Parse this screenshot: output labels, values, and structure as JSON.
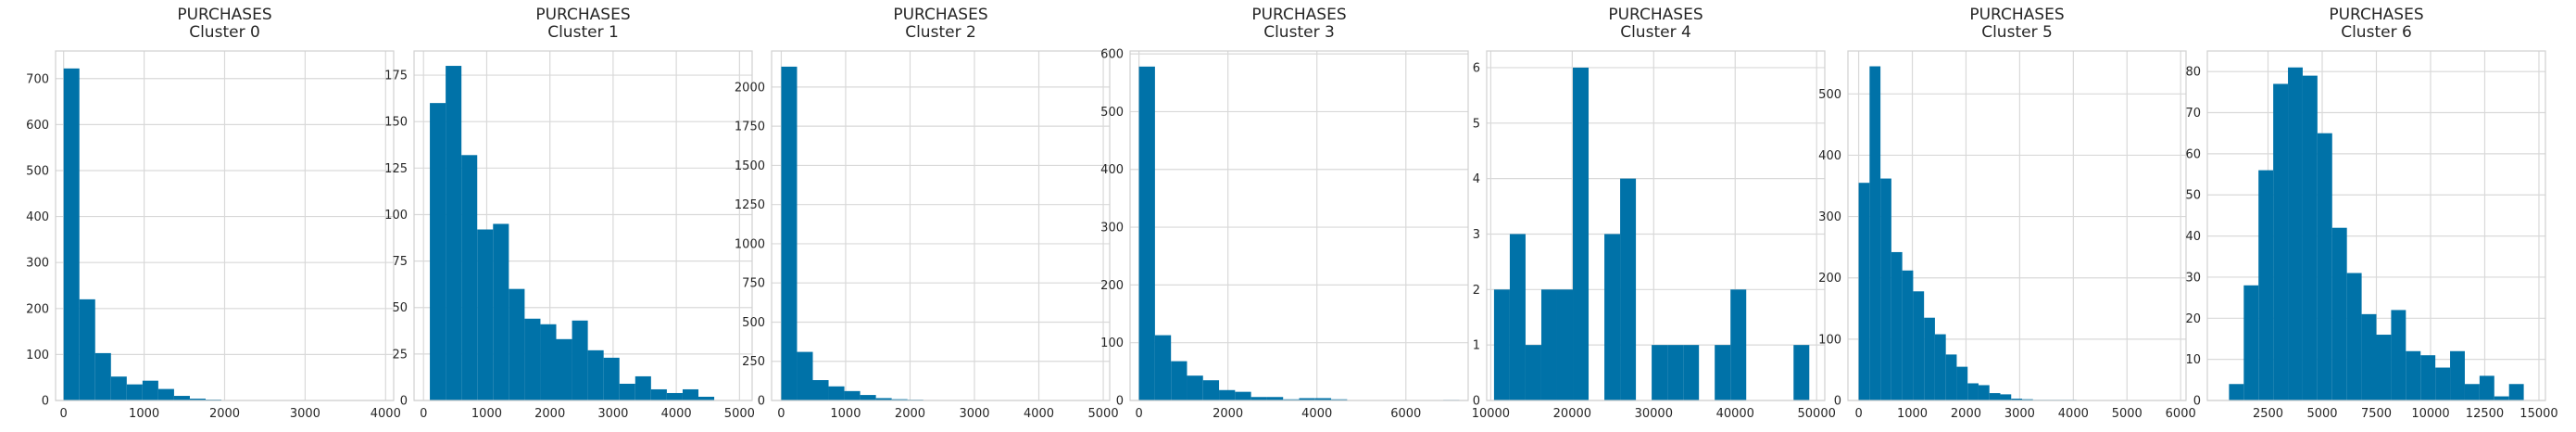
{
  "bar_color": "#0072a8",
  "chart_data": [
    {
      "type": "bar",
      "title": "PURCHASES",
      "subtitle": "Cluster 0",
      "grid": true,
      "xlim": [
        -100,
        4100
      ],
      "ylim": [
        0,
        760
      ],
      "xticks": [
        0,
        1000,
        2000,
        3000,
        4000
      ],
      "yticks": [
        0,
        100,
        200,
        300,
        400,
        500,
        600,
        700
      ],
      "bin_start": 0,
      "bin_width": 196,
      "values": [
        722,
        220,
        103,
        52,
        35,
        43,
        25,
        10,
        4,
        2,
        1,
        0,
        0,
        0,
        0,
        0,
        0,
        0,
        0,
        1
      ]
    },
    {
      "type": "bar",
      "title": "PURCHASES",
      "subtitle": "Cluster 1",
      "grid": true,
      "xlim": [
        -150,
        5200
      ],
      "ylim": [
        0,
        188
      ],
      "xticks": [
        0,
        1000,
        2000,
        3000,
        4000,
        5000
      ],
      "yticks": [
        0,
        25,
        50,
        75,
        100,
        125,
        150,
        175
      ],
      "bin_start": 100,
      "bin_width": 250,
      "values": [
        160,
        180,
        132,
        92,
        95,
        60,
        44,
        41,
        33,
        43,
        27,
        23,
        9,
        13,
        6,
        4,
        6,
        2
      ]
    },
    {
      "type": "bar",
      "title": "PURCHASES",
      "subtitle": "Cluster 2",
      "grid": true,
      "xlim": [
        -150,
        5100
      ],
      "ylim": [
        0,
        2230
      ],
      "xticks": [
        0,
        1000,
        2000,
        3000,
        4000,
        5000
      ],
      "yticks": [
        0,
        250,
        500,
        750,
        1000,
        1250,
        1500,
        1750,
        2000
      ],
      "bin_start": 0,
      "bin_width": 245,
      "values": [
        2130,
        310,
        130,
        90,
        60,
        35,
        15,
        8,
        5,
        3,
        2,
        1,
        1,
        0,
        0,
        0,
        0,
        0,
        0,
        1
      ]
    },
    {
      "type": "bar",
      "title": "PURCHASES",
      "subtitle": "Cluster 3",
      "grid": true,
      "xlim": [
        -200,
        7400
      ],
      "ylim": [
        0,
        605
      ],
      "xticks": [
        0,
        2000,
        4000,
        6000
      ],
      "yticks": [
        0,
        100,
        200,
        300,
        400,
        500,
        600
      ],
      "bin_start": 0,
      "bin_width": 360,
      "values": [
        578,
        113,
        68,
        43,
        35,
        18,
        15,
        6,
        6,
        2,
        4,
        4,
        2,
        0,
        0,
        0,
        0,
        0,
        0,
        1
      ]
    },
    {
      "type": "bar",
      "title": "PURCHASES",
      "subtitle": "Cluster 4",
      "grid": true,
      "xlim": [
        9500,
        51000
      ],
      "ylim": [
        0,
        6.3
      ],
      "xticks": [
        10000,
        20000,
        30000,
        40000,
        50000
      ],
      "yticks": [
        0,
        1,
        2,
        3,
        4,
        5,
        6
      ],
      "bin_start": 10400,
      "bin_width": 1935,
      "values": [
        2,
        3,
        1,
        2,
        2,
        6,
        0,
        3,
        4,
        0,
        1,
        1,
        1,
        0,
        1,
        2,
        0,
        0,
        0,
        1
      ]
    },
    {
      "type": "bar",
      "title": "PURCHASES",
      "subtitle": "Cluster 5",
      "grid": true,
      "xlim": [
        -200,
        6100
      ],
      "ylim": [
        0,
        570
      ],
      "xticks": [
        0,
        1000,
        2000,
        3000,
        4000,
        5000,
        6000
      ],
      "yticks": [
        0,
        100,
        200,
        300,
        400,
        500
      ],
      "bin_start": 0,
      "bin_width": 203,
      "values": [
        355,
        545,
        362,
        242,
        212,
        178,
        135,
        108,
        75,
        55,
        28,
        25,
        12,
        10,
        3,
        2,
        1,
        1,
        1,
        1
      ]
    },
    {
      "type": "bar",
      "title": "PURCHASES",
      "subtitle": "Cluster 6",
      "grid": true,
      "xlim": [
        -300,
        15300
      ],
      "ylim": [
        0,
        85
      ],
      "xticks": [
        2500,
        5000,
        7500,
        10000,
        12500,
        15000
      ],
      "yticks": [
        0,
        10,
        20,
        30,
        40,
        50,
        60,
        70,
        80
      ],
      "bin_start": 700,
      "bin_width": 680,
      "values": [
        4,
        28,
        56,
        77,
        81,
        79,
        65,
        42,
        31,
        21,
        16,
        22,
        12,
        11,
        8,
        12,
        4,
        6,
        1,
        4
      ]
    }
  ]
}
